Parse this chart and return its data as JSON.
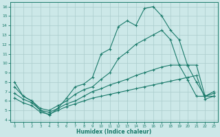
{
  "line1_x": [
    0,
    1,
    2,
    3,
    4,
    5,
    6,
    7,
    8,
    9,
    10,
    11,
    12,
    13,
    14,
    15,
    16,
    17,
    18,
    19,
    20,
    21,
    22,
    23
  ],
  "line1_y": [
    8.0,
    6.5,
    6.0,
    5.0,
    4.5,
    5.2,
    6.3,
    7.5,
    7.8,
    8.5,
    11.0,
    11.5,
    13.9,
    14.5,
    14.0,
    15.8,
    16.0,
    15.0,
    13.5,
    12.5,
    9.7,
    8.0,
    6.5,
    7.0
  ],
  "line2_x": [
    0,
    1,
    2,
    3,
    4,
    5,
    6,
    7,
    8,
    9,
    10,
    11,
    12,
    13,
    14,
    15,
    16,
    17,
    18,
    19,
    20,
    21,
    22,
    23
  ],
  "line2_y": [
    7.5,
    6.5,
    6.0,
    5.2,
    5.0,
    5.5,
    6.0,
    6.7,
    7.2,
    7.5,
    8.3,
    9.0,
    10.5,
    11.2,
    12.0,
    12.5,
    13.0,
    13.5,
    12.5,
    9.8,
    8.2,
    6.5,
    6.5,
    6.5
  ],
  "line3_x": [
    0,
    1,
    2,
    3,
    4,
    5,
    6,
    7,
    8,
    9,
    10,
    11,
    12,
    13,
    14,
    15,
    16,
    17,
    18,
    19,
    20,
    21,
    22,
    23
  ],
  "line3_y": [
    6.8,
    6.2,
    5.8,
    5.0,
    4.8,
    5.2,
    5.7,
    6.0,
    6.5,
    7.0,
    7.3,
    7.7,
    8.0,
    8.3,
    8.7,
    9.0,
    9.3,
    9.6,
    9.8,
    9.8,
    9.8,
    9.8,
    6.5,
    6.8
  ],
  "line4_x": [
    0,
    1,
    2,
    3,
    4,
    5,
    6,
    7,
    8,
    9,
    10,
    11,
    12,
    13,
    14,
    15,
    16,
    17,
    18,
    19,
    20,
    21,
    22,
    23
  ],
  "line4_y": [
    6.3,
    5.8,
    5.5,
    4.8,
    4.6,
    5.0,
    5.4,
    5.7,
    6.0,
    6.3,
    6.5,
    6.7,
    6.9,
    7.1,
    7.3,
    7.5,
    7.7,
    7.9,
    8.1,
    8.3,
    8.5,
    8.7,
    6.2,
    6.5
  ],
  "color": "#1a7a6a",
  "bg_color": "#cce8e8",
  "grid_color": "#aacccc",
  "xlabel": "Humidex (Indice chaleur)",
  "xlim": [
    -0.5,
    23.5
  ],
  "ylim": [
    3.8,
    16.5
  ],
  "xticks": [
    0,
    1,
    2,
    3,
    4,
    5,
    6,
    7,
    8,
    9,
    10,
    11,
    12,
    13,
    14,
    15,
    16,
    17,
    18,
    19,
    20,
    21,
    22,
    23
  ],
  "yticks": [
    4,
    5,
    6,
    7,
    8,
    9,
    10,
    11,
    12,
    13,
    14,
    15,
    16
  ]
}
